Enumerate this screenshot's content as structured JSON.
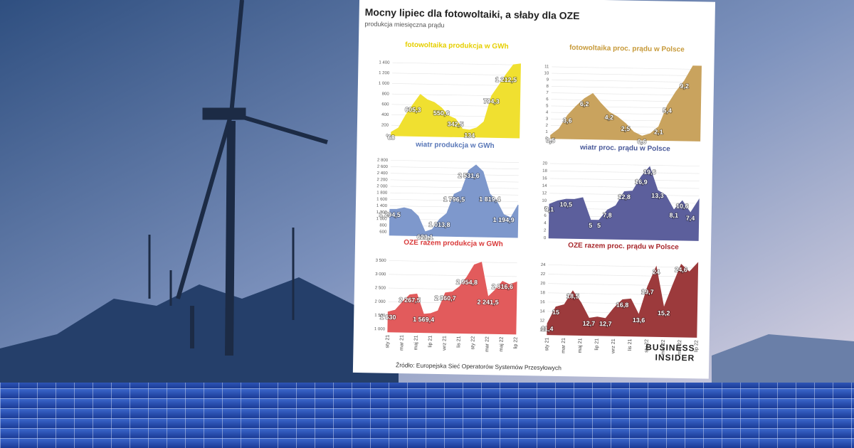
{
  "header": {
    "title": "Mocny lipiec dla fotowoltaiki, a słaby dla OZE",
    "subtitle": "produkcja miesięczna prądu"
  },
  "chart_data": [
    {
      "type": "area",
      "title": "fotowoltaika produkcja w GWh",
      "color": "#f0e030",
      "title_color": "#e6cf00",
      "grid": true,
      "values": [
        68,
        150,
        400,
        605.3,
        800,
        700,
        650,
        550.6,
        400,
        342.5,
        150,
        134,
        180,
        300,
        794.3,
        1000,
        1212.5,
        1400,
        1420
      ],
      "value_labels": [
        "68",
        null,
        null,
        "605,3",
        null,
        null,
        null,
        "550,6",
        null,
        "342,5",
        null,
        "134",
        null,
        null,
        "794,3",
        null,
        "1 212,5",
        null,
        null
      ],
      "ylim": [
        0,
        1500
      ],
      "yticks": [
        0,
        200,
        400,
        600,
        800,
        {
          "value": 1000,
          "label": "1 000"
        },
        {
          "value": 1200,
          "label": "1 200"
        },
        {
          "value": 1400,
          "label": "1 400"
        }
      ]
    },
    {
      "type": "area",
      "title": "fotowoltaika proc. prądu w Polsce",
      "color": "#c9a35e",
      "title_color": "#c79a3a",
      "grid": true,
      "values": [
        0.5,
        1.5,
        3.6,
        5,
        6.2,
        7,
        5.5,
        4.2,
        3.5,
        2.5,
        1.2,
        0.6,
        1,
        2.1,
        5.4,
        7.5,
        9.2,
        11.5,
        11.5
      ],
      "value_labels": [
        "0,5",
        null,
        "3,6",
        null,
        "6,2",
        null,
        null,
        "4,2",
        null,
        "2,5",
        null,
        "0,6",
        null,
        "2,1",
        "5,4",
        null,
        "9,2",
        null,
        null
      ],
      "ylim": [
        0,
        12
      ],
      "yticks": [
        0,
        1,
        2,
        3,
        4,
        5,
        6,
        7,
        8,
        9,
        10,
        11
      ]
    },
    {
      "type": "area",
      "title": "wiatr produkcja w GWh",
      "color": "#7e98cc",
      "title_color": "#5a78b8",
      "grid": true,
      "values": [
        1294.5,
        1300,
        1350,
        1300,
        1100,
        623.1,
        700,
        1013.8,
        1200,
        1796.5,
        1900,
        2531.6,
        2700,
        2500,
        1819.4,
        1600,
        1194.9,
        1100,
        1500
      ],
      "value_labels": [
        "1 294,5",
        null,
        null,
        null,
        null,
        "623,1",
        null,
        "1 013,8",
        null,
        "1 796,5",
        null,
        "2 531,6",
        null,
        null,
        "1 819,4",
        null,
        "1 194,9",
        null,
        null
      ],
      "ylim": [
        500,
        2900
      ],
      "yticks": [
        600,
        800,
        {
          "value": 1000,
          "label": "1 000"
        },
        {
          "value": 1200,
          "label": "1 200"
        },
        {
          "value": 1400,
          "label": "1 400"
        },
        {
          "value": 1600,
          "label": "1 600"
        },
        {
          "value": 1800,
          "label": "1 800"
        },
        {
          "value": 2000,
          "label": "2 000"
        },
        {
          "value": 2200,
          "label": "2 200"
        },
        {
          "value": 2400,
          "label": "2 400"
        },
        {
          "value": 2600,
          "label": "2 600"
        },
        {
          "value": 2800,
          "label": "2 800"
        }
      ]
    },
    {
      "type": "area",
      "title": "wiatr proc. prądu w Polsce",
      "color": "#5c5f9c",
      "title_color": "#4a5a9a",
      "grid": true,
      "values": [
        9.1,
        10,
        10.5,
        10.5,
        11,
        5,
        5,
        7.8,
        9,
        12.8,
        13,
        16.9,
        19.6,
        13.3,
        12,
        8.1,
        10.6,
        7.4,
        11
      ],
      "value_labels": [
        "9,1",
        null,
        "10,5",
        null,
        null,
        "5",
        "5",
        "7,8",
        null,
        "12,8",
        null,
        "16,9",
        "19,6",
        "13,3",
        null,
        "8,1",
        "10,6",
        "7,4",
        null
      ],
      "ylim": [
        0,
        21
      ],
      "yticks": [
        0,
        2,
        4,
        6,
        8,
        10,
        12,
        14,
        16,
        18,
        20
      ]
    },
    {
      "type": "area",
      "title": "OZE razem produkcja w GWh",
      "color": "#e25b5c",
      "title_color": "#d93a3a",
      "grid": true,
      "categories": [
        "sty 21",
        null,
        "mar 21",
        null,
        "maj 21",
        null,
        "lip 21",
        null,
        "wrz 21",
        null,
        "lis 21",
        null,
        "sty 22",
        null,
        "mar 22",
        null,
        "maj 22",
        null,
        "lip 22"
      ],
      "values": [
        1630,
        1700,
        2000,
        2267.5,
        2300,
        1569.4,
        1600,
        1700,
        2360.7,
        2400,
        2600,
        2954.8,
        3400,
        3500,
        2241.5,
        2500,
        2816.6,
        2700,
        2800
      ],
      "value_labels": [
        "1 630",
        null,
        null,
        "2 267,5",
        null,
        "1 569,4",
        null,
        null,
        "2 360,7",
        null,
        null,
        "2 954,8",
        null,
        null,
        "2 241,5",
        null,
        "2 816,6",
        null,
        null
      ],
      "ylim": [
        900,
        3700
      ],
      "yticks": [
        {
          "value": 1000,
          "label": "1 000"
        },
        {
          "value": 1500,
          "label": "1 500"
        },
        {
          "value": 2000,
          "label": "2 000"
        },
        {
          "value": 2500,
          "label": "2 500"
        },
        {
          "value": 3000,
          "label": "3 000"
        },
        {
          "value": 3500,
          "label": "3 500"
        }
      ]
    },
    {
      "type": "area",
      "title": "OZE razem proc. prądu w Polsce",
      "color": "#9c3a3c",
      "title_color": "#a8282c",
      "grid": true,
      "categories": [
        "sty 21",
        null,
        "mar 21",
        null,
        "maj 21",
        null,
        "lip 21",
        null,
        "wrz 21",
        null,
        "lis 21",
        null,
        "sty 22",
        null,
        "mar 22",
        null,
        "maj 22",
        null,
        "lip 22"
      ],
      "values": [
        11.4,
        15,
        15.5,
        18.5,
        16,
        12.7,
        13,
        12.7,
        15,
        16.8,
        17,
        13.6,
        19.7,
        24,
        15.2,
        20,
        24.6,
        23,
        25
      ],
      "value_labels": [
        "11,4",
        "15",
        null,
        "18,5",
        null,
        "12,7",
        null,
        "12,7",
        null,
        "16,8",
        null,
        "13,6",
        "19,7",
        "24",
        "15,2",
        null,
        "24,6",
        null,
        null
      ],
      "ylim": [
        9,
        25.5
      ],
      "yticks": [
        10,
        12,
        14,
        16,
        18,
        20,
        22,
        24
      ]
    }
  ],
  "source": "Źródło: Europejska Sieć Operatorów Systemów Przesyłowych",
  "logo": {
    "line1": "BUSINESS",
    "line2": "INSIDER"
  }
}
